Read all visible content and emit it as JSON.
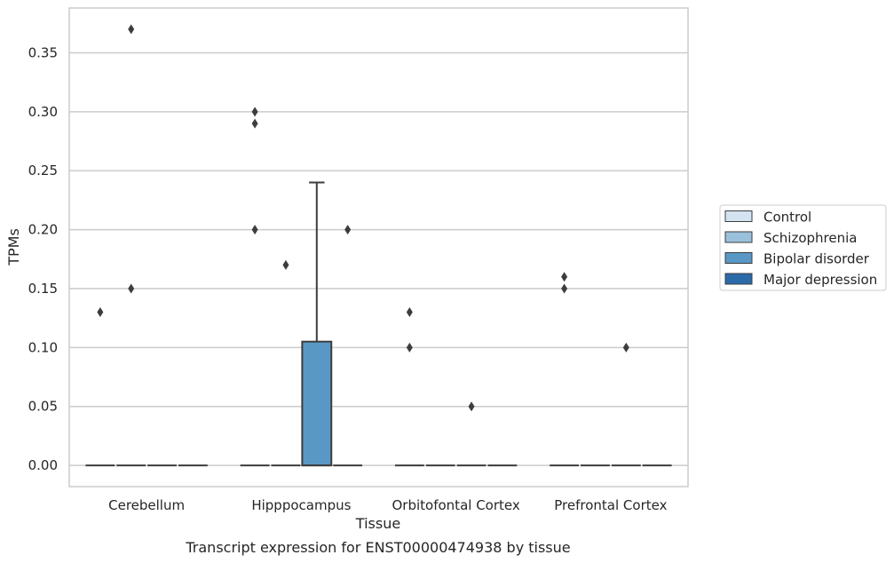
{
  "chart_data": {
    "type": "box",
    "title": "Transcript expression for ENST00000474938 by tissue",
    "xlabel": "Tissue",
    "ylabel": "TPMs",
    "ylim": [
      -0.018,
      0.388
    ],
    "yticks": [
      "0.00",
      "0.05",
      "0.10",
      "0.15",
      "0.20",
      "0.25",
      "0.30",
      "0.35"
    ],
    "grid": "horizontal",
    "legend_position": "right",
    "categories": [
      "Cerebellum",
      "Hipppocampus",
      "Orbitofontal Cortex",
      "Prefrontal Cortex"
    ],
    "series": [
      {
        "name": "Control",
        "color": "#d4e3f1",
        "boxes": [
          {
            "category": "Cerebellum",
            "q1": 0,
            "median": 0,
            "q3": 0,
            "whisker_low": 0,
            "whisker_high": 0,
            "outliers": [
              0.13
            ]
          },
          {
            "category": "Hipppocampus",
            "q1": 0,
            "median": 0,
            "q3": 0,
            "whisker_low": 0,
            "whisker_high": 0,
            "outliers": [
              0.3,
              0.29,
              0.2
            ]
          },
          {
            "category": "Orbitofontal Cortex",
            "q1": 0,
            "median": 0,
            "q3": 0,
            "whisker_low": 0,
            "whisker_high": 0,
            "outliers": [
              0.13,
              0.1
            ]
          },
          {
            "category": "Prefrontal Cortex",
            "q1": 0,
            "median": 0,
            "q3": 0,
            "whisker_low": 0,
            "whisker_high": 0,
            "outliers": [
              0.16,
              0.15
            ]
          }
        ]
      },
      {
        "name": "Schizophrenia",
        "color": "#9ac1dc",
        "boxes": [
          {
            "category": "Cerebellum",
            "q1": 0,
            "median": 0,
            "q3": 0,
            "whisker_low": 0,
            "whisker_high": 0,
            "outliers": [
              0.37,
              0.15
            ]
          },
          {
            "category": "Hipppocampus",
            "q1": 0,
            "median": 0,
            "q3": 0,
            "whisker_low": 0,
            "whisker_high": 0,
            "outliers": [
              0.17
            ]
          },
          {
            "category": "Orbitofontal Cortex",
            "q1": 0,
            "median": 0,
            "q3": 0,
            "whisker_low": 0,
            "whisker_high": 0,
            "outliers": []
          },
          {
            "category": "Prefrontal Cortex",
            "q1": 0,
            "median": 0,
            "q3": 0,
            "whisker_low": 0,
            "whisker_high": 0,
            "outliers": []
          }
        ]
      },
      {
        "name": "Bipolar disorder",
        "color": "#5998c5",
        "boxes": [
          {
            "category": "Cerebellum",
            "q1": 0,
            "median": 0,
            "q3": 0,
            "whisker_low": 0,
            "whisker_high": 0,
            "outliers": []
          },
          {
            "category": "Hipppocampus",
            "q1": 0,
            "median": 0,
            "q3": 0.105,
            "whisker_low": 0,
            "whisker_high": 0.24,
            "outliers": []
          },
          {
            "category": "Orbitofontal Cortex",
            "q1": 0,
            "median": 0,
            "q3": 0,
            "whisker_low": 0,
            "whisker_high": 0,
            "outliers": [
              0.05
            ]
          },
          {
            "category": "Prefrontal Cortex",
            "q1": 0,
            "median": 0,
            "q3": 0,
            "whisker_low": 0,
            "whisker_high": 0,
            "outliers": [
              0.1
            ]
          }
        ]
      },
      {
        "name": "Major depression",
        "color": "#2a6aa9",
        "boxes": [
          {
            "category": "Cerebellum",
            "q1": 0,
            "median": 0,
            "q3": 0,
            "whisker_low": 0,
            "whisker_high": 0,
            "outliers": []
          },
          {
            "category": "Hipppocampus",
            "q1": 0,
            "median": 0,
            "q3": 0,
            "whisker_low": 0,
            "whisker_high": 0,
            "outliers": [
              0.2
            ]
          },
          {
            "category": "Orbitofontal Cortex",
            "q1": 0,
            "median": 0,
            "q3": 0,
            "whisker_low": 0,
            "whisker_high": 0,
            "outliers": []
          },
          {
            "category": "Prefrontal Cortex",
            "q1": 0,
            "median": 0,
            "q3": 0,
            "whisker_low": 0,
            "whisker_high": 0,
            "outliers": []
          }
        ]
      }
    ]
  }
}
